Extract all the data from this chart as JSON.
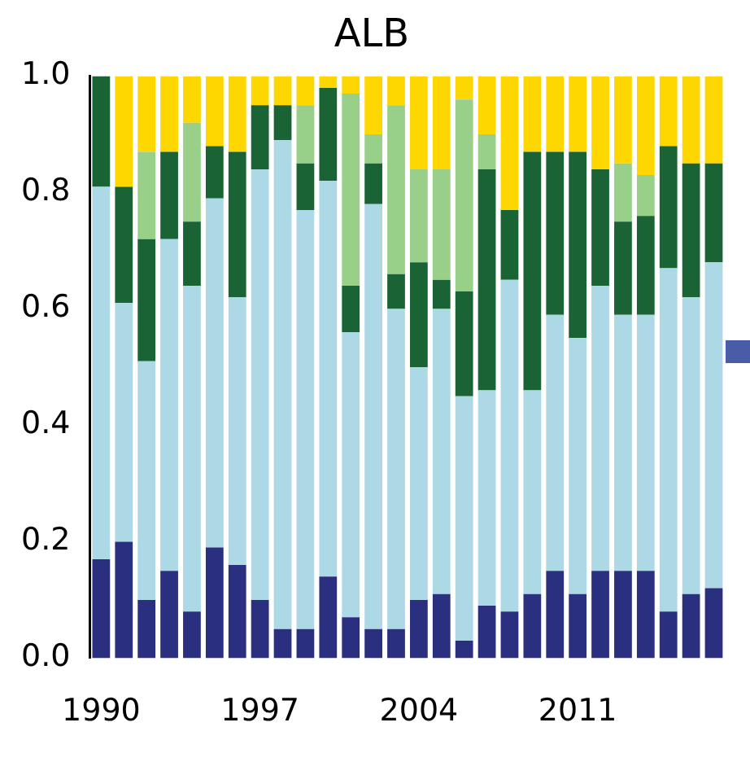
{
  "chart_data": {
    "type": "bar",
    "title": "ALB",
    "stacked": true,
    "grid": false,
    "legend": false,
    "categories": [
      "1990",
      null,
      null,
      null,
      null,
      null,
      null,
      "1997",
      null,
      null,
      null,
      null,
      null,
      null,
      "2004",
      null,
      null,
      null,
      null,
      null,
      null,
      "2011",
      null,
      null,
      null,
      null,
      null,
      null
    ],
    "ylim": [
      0,
      1
    ],
    "yticks": [
      {
        "value": 0,
        "label": "0.0"
      },
      {
        "value": 0.2,
        "label": "0.2"
      },
      {
        "value": 0.4,
        "label": "0.4"
      },
      {
        "value": 0.6,
        "label": "0.6"
      },
      {
        "value": 0.8,
        "label": "0.8"
      },
      {
        "value": 1,
        "label": "1.0"
      }
    ],
    "series": [
      {
        "color": "#2b2f7f",
        "values": [
          0.17,
          0.2,
          0.1,
          0.15,
          0.08,
          0.19,
          0.16,
          0.1,
          0.05,
          0.05,
          0.14,
          0.07,
          0.05,
          0.05,
          0.1,
          0.11,
          0.03,
          0.09,
          0.08,
          0.11,
          0.15,
          0.11,
          0.15,
          0.15,
          0.15,
          0.08,
          0.11,
          0.12
        ]
      },
      {
        "color": "#add8e6",
        "values": [
          0.64,
          0.41,
          0.41,
          0.57,
          0.56,
          0.6,
          0.46,
          0.74,
          0.84,
          0.72,
          0.68,
          0.49,
          0.73,
          0.55,
          0.4,
          0.49,
          0.42,
          0.37,
          0.57,
          0.35,
          0.44,
          0.44,
          0.49,
          0.44,
          0.44,
          0.59,
          0.51,
          0.56
        ]
      },
      {
        "color": "#1a6335",
        "values": [
          0.19,
          0.2,
          0.21,
          0.15,
          0.11,
          0.09,
          0.25,
          0.11,
          0.06,
          0.08,
          0.16,
          0.08,
          0.07,
          0.06,
          0.18,
          0.05,
          0.18,
          0.38,
          0.12,
          0.41,
          0.28,
          0.32,
          0.2,
          0.16,
          0.17,
          0.21,
          0.23,
          0.17
        ]
      },
      {
        "color": "#98d08a",
        "values": [
          0,
          0,
          0.15,
          0,
          0.17,
          0,
          0,
          0,
          0,
          0.1,
          0,
          0.33,
          0.05,
          0.29,
          0.16,
          0.19,
          0.33,
          0.06,
          0,
          0,
          0,
          0,
          0,
          0.1,
          0.07,
          0,
          0,
          0
        ]
      },
      {
        "color": "#ffd700",
        "values": [
          0,
          0.19,
          0.13,
          0.13,
          0.08,
          0.12,
          0.13,
          0.05,
          0.05,
          0.05,
          0.02,
          0.03,
          0.1,
          0.05,
          0.16,
          0.16,
          0.04,
          0.1,
          0.23,
          0.13,
          0.13,
          0.13,
          0.16,
          0.15,
          0.17,
          0.12,
          0.15,
          0.15
        ]
      }
    ]
  }
}
